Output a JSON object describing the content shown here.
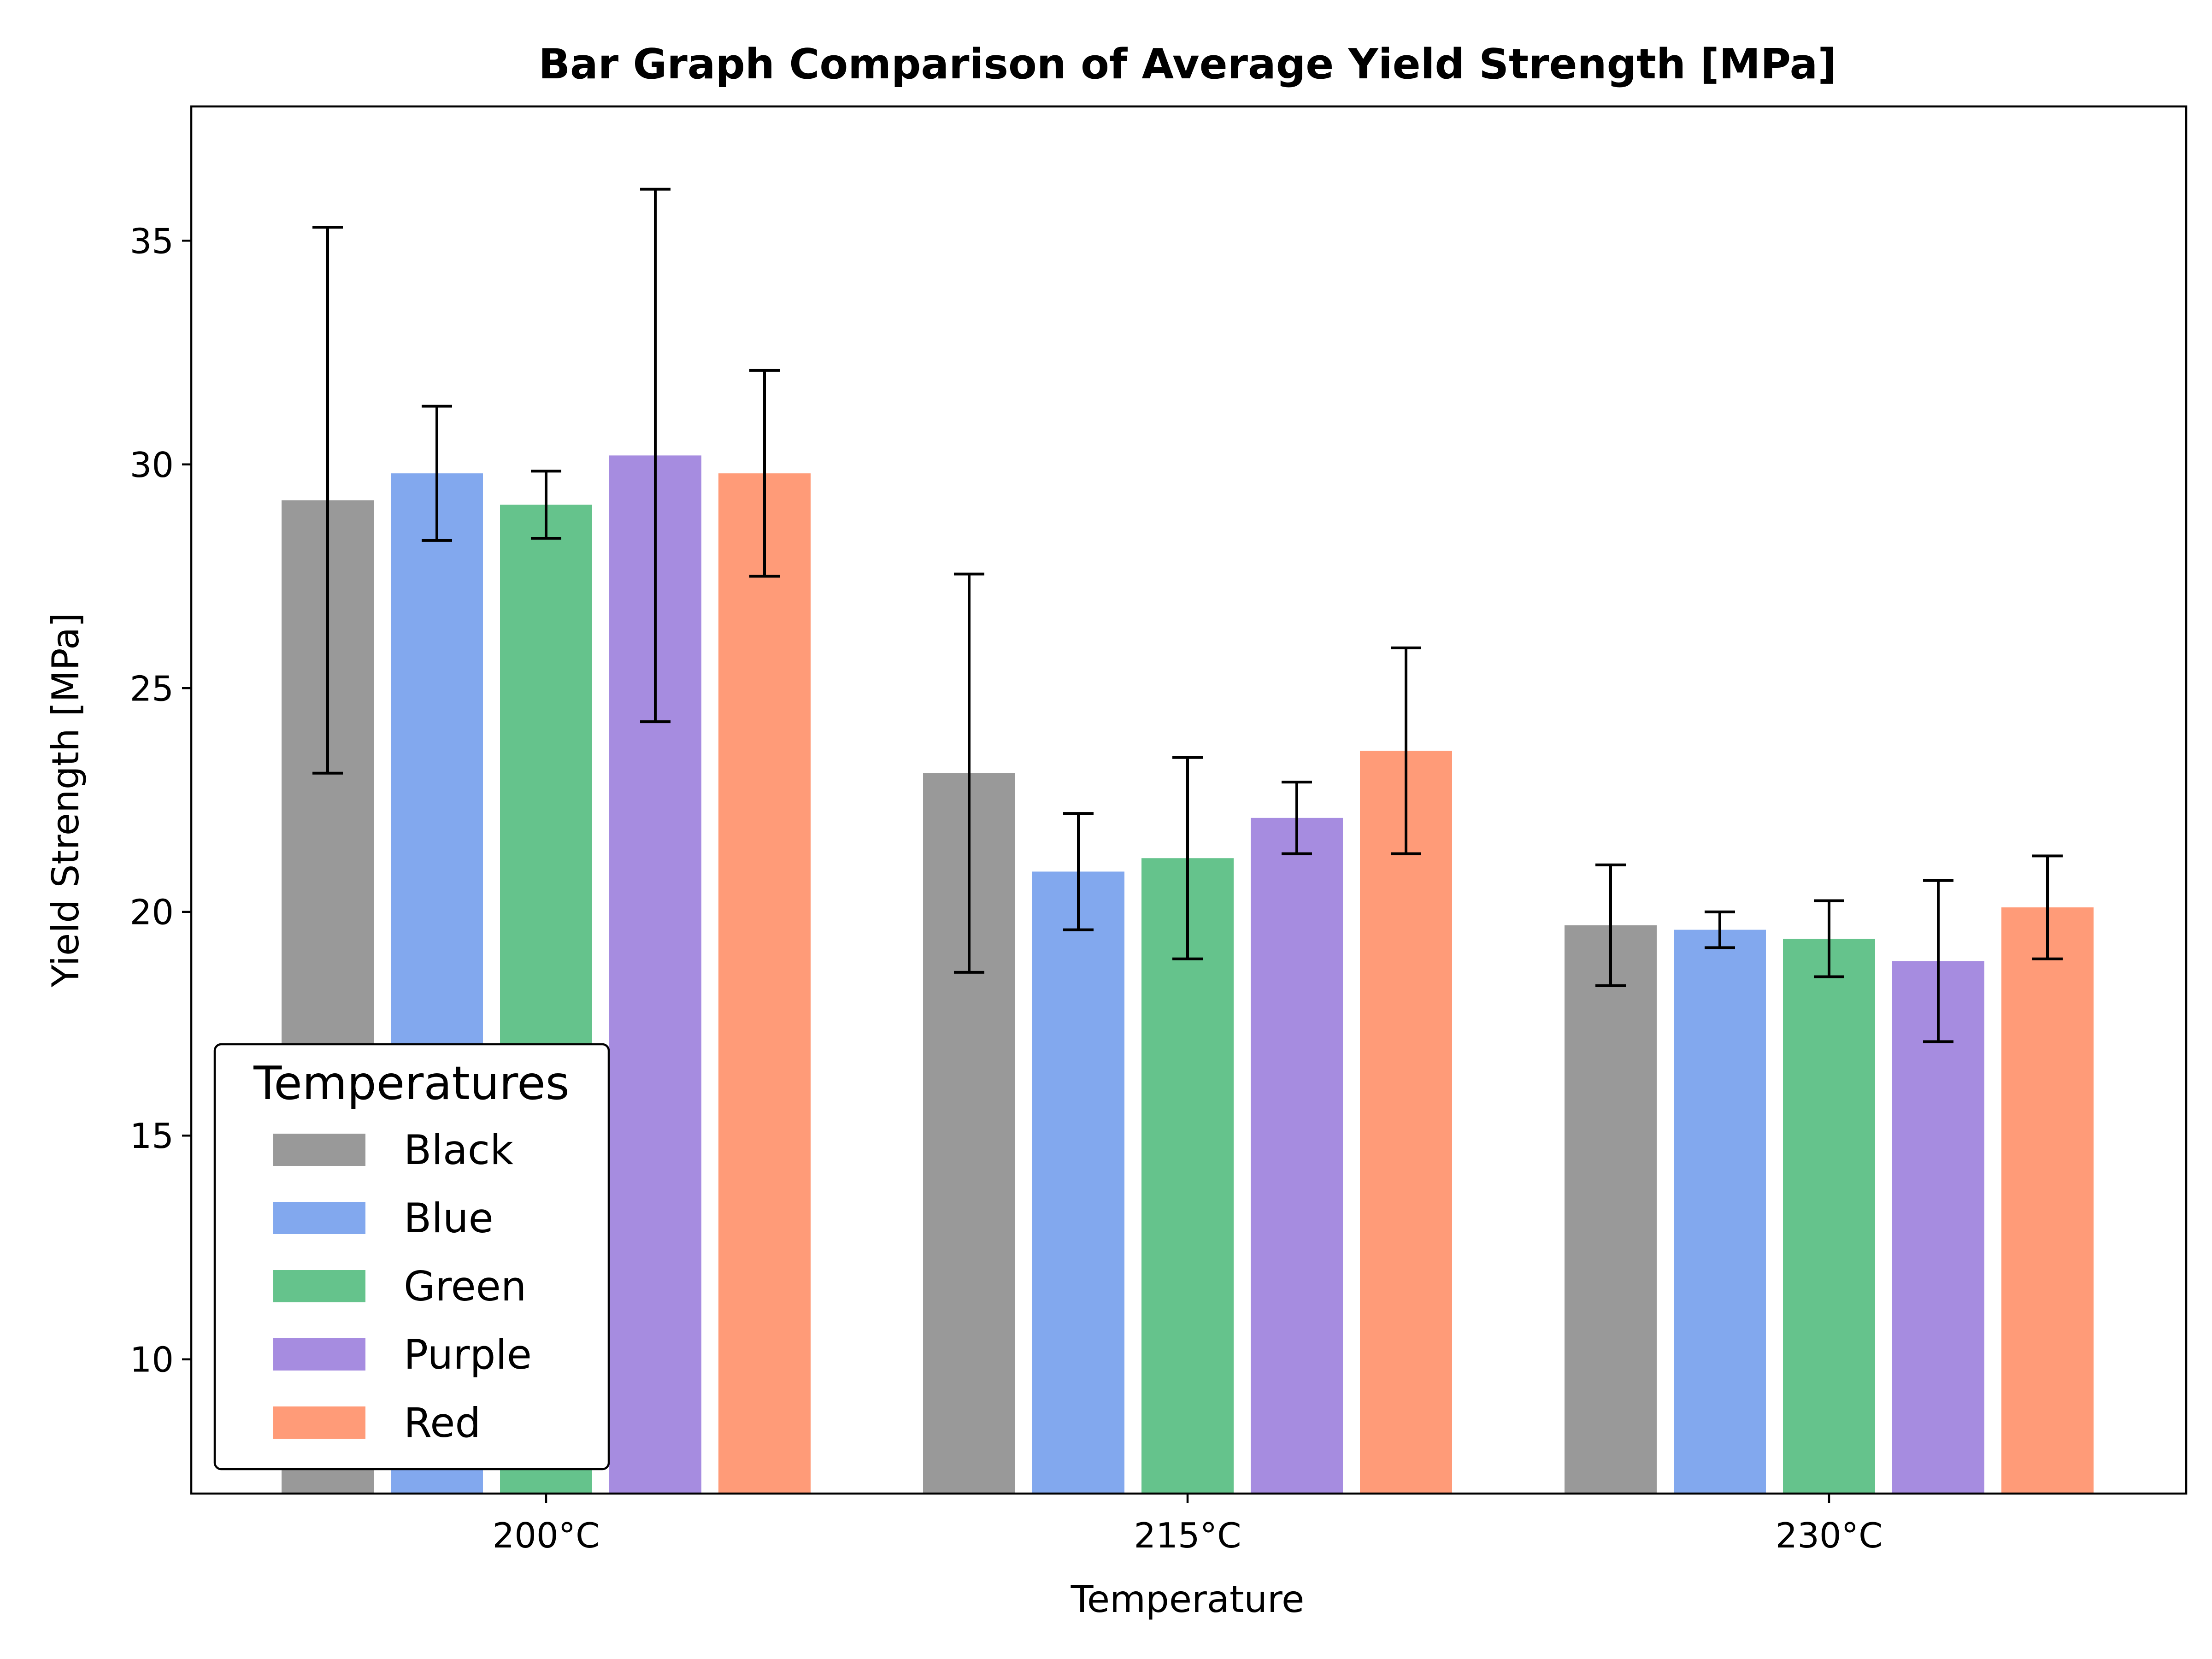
{
  "chart_data": {
    "type": "bar",
    "title": "Bar Graph Comparison of Average Yield Strength [MPa]",
    "xlabel": "Temperature",
    "ylabel": "Yield Strength [MPa]",
    "categories": [
      "200°C",
      "215°C",
      "230°C"
    ],
    "ylim": [
      7,
      38
    ],
    "yticks": [
      10,
      15,
      20,
      25,
      30,
      35
    ],
    "ytick_labels": [
      "10",
      "15",
      "20",
      "25",
      "30",
      "35"
    ],
    "grid": false,
    "legend": {
      "title": "Temperatures",
      "position": "lower-left"
    },
    "series": [
      {
        "name": "Black",
        "color": "#999999",
        "values": [
          29.2,
          23.1,
          19.7
        ],
        "errors": [
          6.1,
          4.45,
          1.35
        ]
      },
      {
        "name": "Blue",
        "color": "#82a8ee",
        "values": [
          29.8,
          20.9,
          19.6
        ],
        "errors": [
          1.5,
          1.3,
          0.4
        ]
      },
      {
        "name": "Green",
        "color": "#65c38c",
        "values": [
          29.1,
          21.2,
          19.4
        ],
        "errors": [
          0.75,
          2.25,
          0.85
        ]
      },
      {
        "name": "Purple",
        "color": "#a68ce0",
        "values": [
          30.2,
          22.1,
          18.9
        ],
        "errors": [
          5.95,
          0.8,
          1.8
        ]
      },
      {
        "name": "Red",
        "color": "#ff9b78",
        "values": [
          29.8,
          23.6,
          20.1
        ],
        "errors": [
          2.3,
          2.3,
          1.15
        ]
      }
    ]
  }
}
